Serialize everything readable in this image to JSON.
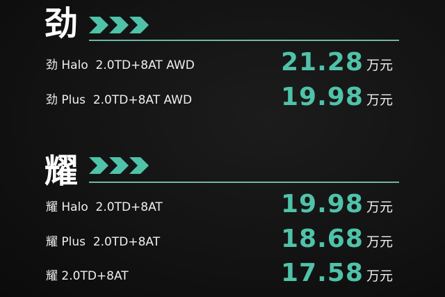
{
  "accent_color": "#4fc3a9",
  "sections": [
    {
      "heading": "劲",
      "icon": "triple-chevron-right-icon",
      "rows": [
        {
          "name": "劲 Halo  2.0TD+8AT AWD",
          "price": "21.28",
          "unit": "万元"
        },
        {
          "name": "劲 Plus  2.0TD+8AT AWD",
          "price": "19.98",
          "unit": "万元"
        }
      ]
    },
    {
      "heading": "耀",
      "icon": "triple-chevron-right-icon",
      "rows": [
        {
          "name": "耀 Halo  2.0TD+8AT",
          "price": "19.98",
          "unit": "万元"
        },
        {
          "name": "耀 Plus  2.0TD+8AT",
          "price": "18.68",
          "unit": "万元"
        },
        {
          "name": "耀 2.0TD+8AT",
          "price": "17.58",
          "unit": "万元"
        }
      ]
    }
  ]
}
